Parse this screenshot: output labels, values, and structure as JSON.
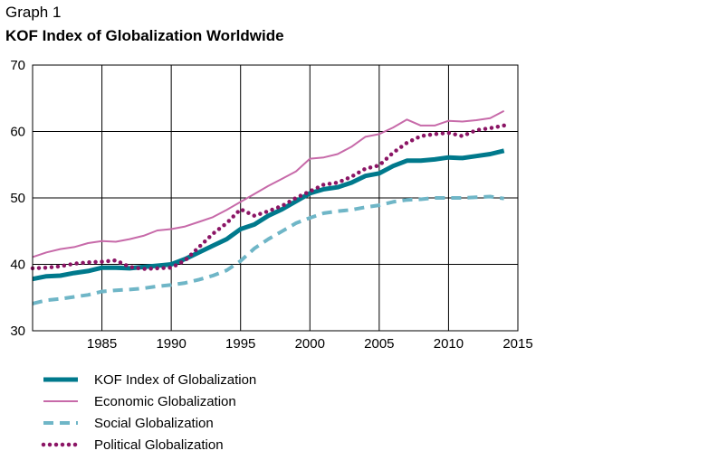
{
  "header": {
    "graph_label": "Graph 1",
    "title": "KOF Index of Globalization Worldwide"
  },
  "chart_data": {
    "type": "line",
    "title": "KOF Index of Globalization Worldwide",
    "xlabel": "",
    "ylabel": "",
    "xlim": [
      1980,
      2015
    ],
    "ylim": [
      30,
      70
    ],
    "grid": true,
    "legend_position": "bottom",
    "x": [
      1980,
      1981,
      1982,
      1983,
      1984,
      1985,
      1986,
      1987,
      1988,
      1989,
      1990,
      1991,
      1992,
      1993,
      1994,
      1995,
      1996,
      1997,
      1998,
      1999,
      2000,
      2001,
      2002,
      2003,
      2004,
      2005,
      2006,
      2007,
      2008,
      2009,
      2010,
      2011,
      2012,
      2013,
      2014
    ],
    "x_ticks": [
      1985,
      1990,
      1995,
      2000,
      2005,
      2010,
      2015
    ],
    "x_tick_labels": [
      "1985",
      "1990",
      "1995",
      "2000",
      "2005",
      "2010",
      "2015"
    ],
    "y_ticks": [
      30,
      40,
      50,
      60,
      70
    ],
    "y_tick_labels": [
      "30",
      "40",
      "50",
      "60",
      "70"
    ],
    "series": [
      {
        "name": "KOF Index of Globalization",
        "color": "#00798c",
        "style": "thick",
        "values": [
          37.8,
          38.2,
          38.3,
          38.7,
          39.0,
          39.5,
          39.5,
          39.4,
          39.6,
          39.8,
          40.0,
          40.8,
          41.8,
          42.8,
          43.8,
          45.3,
          46.0,
          47.3,
          48.3,
          49.5,
          50.7,
          51.3,
          51.6,
          52.3,
          53.3,
          53.7,
          54.8,
          55.6,
          55.6,
          55.8,
          56.1,
          56.0,
          56.3,
          56.6,
          57.1
        ]
      },
      {
        "name": "Economic Globalization",
        "color": "#c76aa9",
        "style": "thin",
        "values": [
          41.1,
          41.8,
          42.3,
          42.6,
          43.2,
          43.5,
          43.4,
          43.8,
          44.3,
          45.1,
          45.3,
          45.7,
          46.4,
          47.1,
          48.2,
          49.4,
          50.6,
          51.8,
          52.9,
          54.0,
          55.9,
          56.1,
          56.6,
          57.7,
          59.2,
          59.6,
          60.6,
          61.8,
          60.9,
          60.9,
          61.6,
          61.5,
          61.7,
          62.0,
          63.1
        ]
      },
      {
        "name": "Social Globalization",
        "color": "#6fb6c7",
        "style": "dashed",
        "values": [
          34.1,
          34.6,
          34.8,
          35.1,
          35.4,
          35.9,
          36.1,
          36.2,
          36.4,
          36.7,
          36.9,
          37.2,
          37.7,
          38.3,
          39.1,
          40.5,
          42.4,
          43.8,
          45.0,
          46.2,
          47.0,
          47.7,
          48.0,
          48.2,
          48.6,
          48.9,
          49.4,
          49.7,
          49.8,
          50.0,
          50.0,
          50.0,
          50.1,
          50.2,
          49.9
        ]
      },
      {
        "name": "Political Globalization",
        "color": "#8b1565",
        "style": "dotted",
        "values": [
          39.4,
          39.5,
          39.7,
          40.1,
          40.3,
          40.4,
          40.6,
          39.6,
          39.3,
          39.4,
          39.5,
          40.6,
          42.6,
          44.6,
          46.2,
          48.3,
          47.3,
          48.0,
          48.8,
          50.0,
          51.0,
          52.0,
          52.3,
          53.2,
          54.4,
          54.9,
          56.8,
          58.3,
          59.3,
          59.6,
          59.8,
          59.3,
          60.2,
          60.5,
          60.9
        ]
      }
    ]
  }
}
